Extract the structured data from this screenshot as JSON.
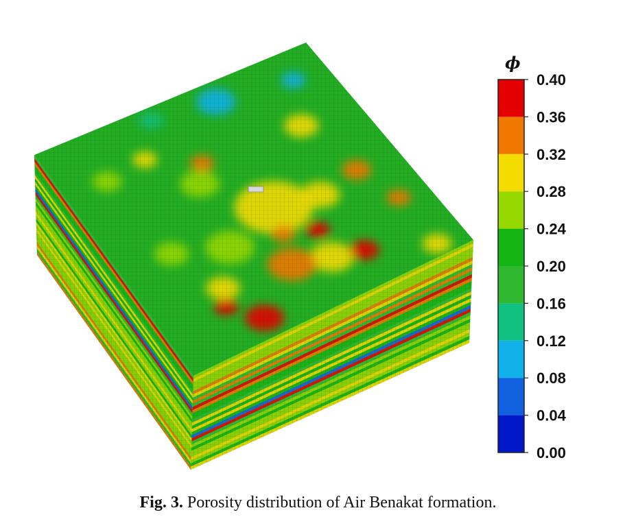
{
  "figure": {
    "caption_label": "Fig. 3.",
    "caption_text": "Porosity distribution of Air Benakat formation."
  },
  "chart_data": {
    "type": "heatmap",
    "title": "",
    "colorbar": {
      "title": "ϕ",
      "range": [
        0.0,
        0.4
      ],
      "ticks": [
        "0.40",
        "0.36",
        "0.32",
        "0.28",
        "0.24",
        "0.20",
        "0.16",
        "0.12",
        "0.08",
        "0.04",
        "0.00"
      ],
      "bins": [
        {
          "from": 0.36,
          "to": 0.4,
          "color": "#e40000"
        },
        {
          "from": 0.32,
          "to": 0.36,
          "color": "#f07800"
        },
        {
          "from": 0.28,
          "to": 0.32,
          "color": "#f4dc00"
        },
        {
          "from": 0.24,
          "to": 0.28,
          "color": "#96d800"
        },
        {
          "from": 0.2,
          "to": 0.24,
          "color": "#14b414"
        },
        {
          "from": 0.16,
          "to": 0.2,
          "color": "#30b830"
        },
        {
          "from": 0.12,
          "to": 0.16,
          "color": "#10c080"
        },
        {
          "from": 0.08,
          "to": 0.12,
          "color": "#10b0e8"
        },
        {
          "from": 0.04,
          "to": 0.08,
          "color": "#1060e0"
        },
        {
          "from": 0.0,
          "to": 0.04,
          "color": "#0018c8"
        }
      ]
    },
    "grid": true
  }
}
